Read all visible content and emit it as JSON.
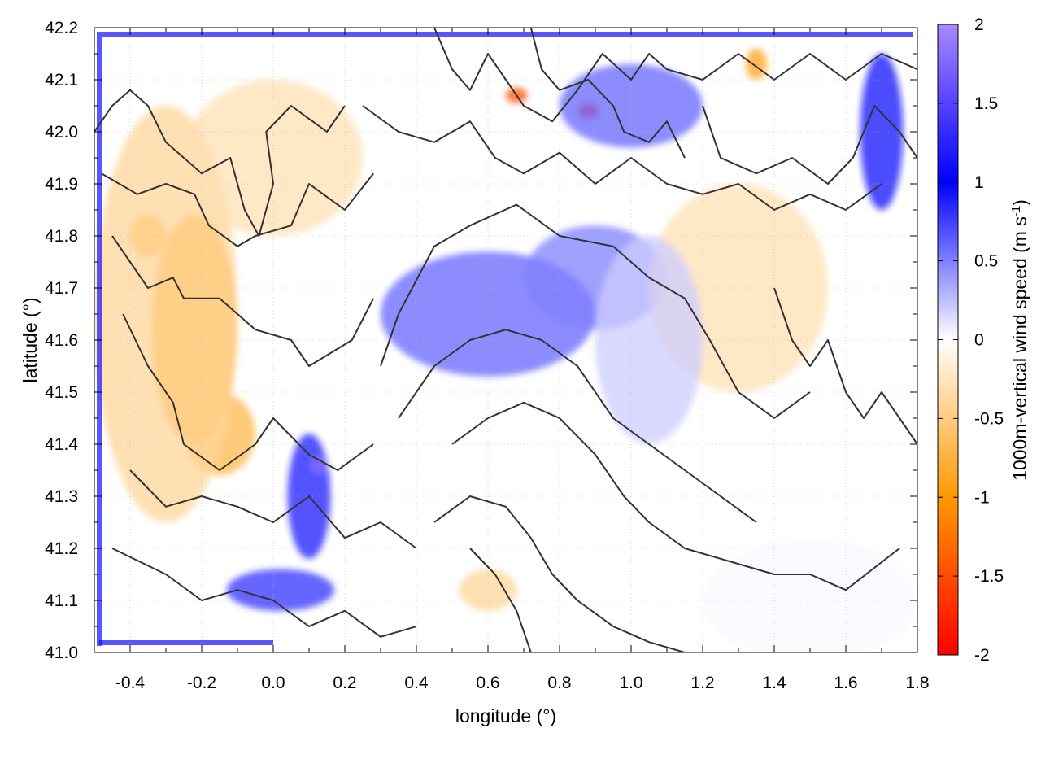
{
  "chart_data": {
    "type": "heatmap",
    "xlabel": "longitude (°)",
    "ylabel": "latitude (°)",
    "colorbar_label": "1000m-vertical wind speed (m s",
    "colorbar_unit_exponent": "-1",
    "colorbar_label_close": ")",
    "xlim": [
      -0.5,
      1.8
    ],
    "ylim": [
      41.0,
      42.2
    ],
    "clim": [
      -2,
      2
    ],
    "x_ticks": [
      -0.4,
      -0.2,
      0.0,
      0.2,
      0.4,
      0.6,
      0.8,
      1.0,
      1.2,
      1.4,
      1.6,
      1.8
    ],
    "x_tick_labels": [
      "-0.4",
      "-0.2",
      "0.0",
      "0.2",
      "0.4",
      "0.6",
      "0.8",
      "1.0",
      "1.2",
      "1.4",
      "1.6",
      "1.8"
    ],
    "y_ticks": [
      41.0,
      41.1,
      41.2,
      41.3,
      41.4,
      41.5,
      41.6,
      41.7,
      41.8,
      41.9,
      42.0,
      42.1,
      42.2
    ],
    "y_tick_labels": [
      "41.0",
      "41.1",
      "41.2",
      "41.3",
      "41.4",
      "41.5",
      "41.6",
      "41.7",
      "41.8",
      "41.9",
      "42.0",
      "42.1",
      "42.2"
    ],
    "colorbar_ticks": [
      2,
      1.5,
      1,
      0.5,
      0,
      -0.5,
      -1,
      -1.5,
      -2
    ],
    "colorbar_tick_labels": [
      "2",
      "1.5",
      "1",
      "0.5",
      "0",
      "-0.5",
      "-1",
      "-1.5",
      "-2"
    ],
    "grid": true,
    "colormap": [
      "#ff0000",
      "#ff9900",
      "#ffffff",
      "#0000ff",
      "#aa88ff"
    ],
    "features": [
      {
        "lon": -0.22,
        "lat": 41.62,
        "value": -0.9,
        "rx": 0.12,
        "ry": 0.22
      },
      {
        "lon": -0.15,
        "lat": 41.42,
        "value": -0.7,
        "rx": 0.1,
        "ry": 0.08
      },
      {
        "lon": -0.35,
        "lat": 41.8,
        "value": -0.8,
        "rx": 0.05,
        "ry": 0.04
      },
      {
        "lon": -0.3,
        "lat": 41.65,
        "value": -0.4,
        "rx": 0.2,
        "ry": 0.4
      },
      {
        "lon": 0.0,
        "lat": 41.95,
        "value": -0.3,
        "rx": 0.25,
        "ry": 0.15
      },
      {
        "lon": 0.6,
        "lat": 41.65,
        "value": 0.6,
        "rx": 0.3,
        "ry": 0.12
      },
      {
        "lon": 0.9,
        "lat": 41.72,
        "value": 0.5,
        "rx": 0.2,
        "ry": 0.1
      },
      {
        "lon": 0.1,
        "lat": 41.3,
        "value": 0.9,
        "rx": 0.06,
        "ry": 0.12
      },
      {
        "lon": 0.02,
        "lat": 41.12,
        "value": 0.8,
        "rx": 0.15,
        "ry": 0.04
      },
      {
        "lon": 0.13,
        "lat": 41.36,
        "value": 1.8,
        "rx": 0.02,
        "ry": 0.015
      },
      {
        "lon": 1.7,
        "lat": 42.0,
        "value": 1.1,
        "rx": 0.06,
        "ry": 0.15
      },
      {
        "lon": 0.68,
        "lat": 42.07,
        "value": -1.5,
        "rx": 0.03,
        "ry": 0.015
      },
      {
        "lon": 0.88,
        "lat": 42.04,
        "value": -1.6,
        "rx": 0.03,
        "ry": 0.015
      },
      {
        "lon": 1.35,
        "lat": 42.13,
        "value": -0.9,
        "rx": 0.03,
        "ry": 0.03
      },
      {
        "lon": 1.3,
        "lat": 41.7,
        "value": -0.3,
        "rx": 0.25,
        "ry": 0.2
      },
      {
        "lon": 1.05,
        "lat": 41.6,
        "value": 0.2,
        "rx": 0.15,
        "ry": 0.2
      },
      {
        "lon": 1.5,
        "lat": 41.1,
        "value": 0.02,
        "rx": 0.3,
        "ry": 0.12
      },
      {
        "lon": 0.6,
        "lat": 41.12,
        "value": -0.4,
        "rx": 0.08,
        "ry": 0.04
      },
      {
        "lon": 1.0,
        "lat": 42.05,
        "value": 0.6,
        "rx": 0.2,
        "ry": 0.08
      }
    ],
    "contours": [
      [
        [
          -0.5,
          42.0
        ],
        [
          -0.45,
          42.05
        ],
        [
          -0.4,
          42.08
        ],
        [
          -0.35,
          42.05
        ],
        [
          -0.3,
          41.98
        ],
        [
          -0.25,
          41.95
        ],
        [
          -0.2,
          41.92
        ],
        [
          -0.12,
          41.95
        ],
        [
          -0.08,
          41.85
        ],
        [
          -0.04,
          41.8
        ],
        [
          0.0,
          41.9
        ],
        [
          -0.02,
          42.0
        ],
        [
          0.05,
          42.05
        ],
        [
          0.15,
          42.0
        ],
        [
          0.2,
          42.05
        ]
      ],
      [
        [
          -0.48,
          41.92
        ],
        [
          -0.38,
          41.88
        ],
        [
          -0.3,
          41.9
        ],
        [
          -0.22,
          41.88
        ],
        [
          -0.18,
          41.82
        ],
        [
          -0.1,
          41.78
        ],
        [
          -0.05,
          41.8
        ],
        [
          0.05,
          41.82
        ],
        [
          0.1,
          41.9
        ],
        [
          0.2,
          41.85
        ],
        [
          0.28,
          41.92
        ]
      ],
      [
        [
          -0.45,
          41.8
        ],
        [
          -0.4,
          41.75
        ],
        [
          -0.35,
          41.7
        ],
        [
          -0.28,
          41.72
        ],
        [
          -0.25,
          41.68
        ],
        [
          -0.15,
          41.68
        ],
        [
          -0.05,
          41.62
        ],
        [
          0.05,
          41.6
        ],
        [
          0.1,
          41.55
        ],
        [
          0.22,
          41.6
        ],
        [
          0.28,
          41.68
        ]
      ],
      [
        [
          -0.42,
          41.65
        ],
        [
          -0.35,
          41.55
        ],
        [
          -0.28,
          41.48
        ],
        [
          -0.25,
          41.4
        ],
        [
          -0.15,
          41.35
        ],
        [
          -0.05,
          41.4
        ],
        [
          0.0,
          41.45
        ],
        [
          0.1,
          41.38
        ],
        [
          0.18,
          41.35
        ],
        [
          0.28,
          41.4
        ]
      ],
      [
        [
          -0.4,
          41.35
        ],
        [
          -0.3,
          41.28
        ],
        [
          -0.2,
          41.3
        ],
        [
          -0.1,
          41.28
        ],
        [
          0.0,
          41.25
        ],
        [
          0.1,
          41.3
        ],
        [
          0.2,
          41.22
        ],
        [
          0.3,
          41.25
        ],
        [
          0.4,
          41.2
        ]
      ],
      [
        [
          -0.45,
          41.2
        ],
        [
          -0.3,
          41.15
        ],
        [
          -0.2,
          41.1
        ],
        [
          -0.1,
          41.12
        ],
        [
          0.0,
          41.1
        ],
        [
          0.1,
          41.05
        ],
        [
          0.2,
          41.08
        ],
        [
          0.3,
          41.03
        ],
        [
          0.4,
          41.05
        ]
      ],
      [
        [
          0.3,
          41.55
        ],
        [
          0.35,
          41.65
        ],
        [
          0.45,
          41.78
        ],
        [
          0.55,
          41.82
        ],
        [
          0.68,
          41.86
        ],
        [
          0.8,
          41.8
        ],
        [
          0.95,
          41.78
        ],
        [
          1.05,
          41.72
        ],
        [
          1.15,
          41.68
        ],
        [
          1.22,
          41.6
        ],
        [
          1.3,
          41.5
        ],
        [
          1.4,
          41.45
        ],
        [
          1.5,
          41.5
        ]
      ],
      [
        [
          0.35,
          41.45
        ],
        [
          0.45,
          41.55
        ],
        [
          0.55,
          41.6
        ],
        [
          0.65,
          41.62
        ],
        [
          0.75,
          41.6
        ],
        [
          0.85,
          41.55
        ],
        [
          0.95,
          41.45
        ],
        [
          1.05,
          41.4
        ],
        [
          1.15,
          41.35
        ],
        [
          1.25,
          41.3
        ],
        [
          1.35,
          41.25
        ]
      ],
      [
        [
          0.5,
          41.4
        ],
        [
          0.6,
          41.45
        ],
        [
          0.7,
          41.48
        ],
        [
          0.8,
          41.45
        ],
        [
          0.9,
          41.38
        ],
        [
          0.98,
          41.3
        ],
        [
          1.05,
          41.25
        ],
        [
          1.15,
          41.2
        ],
        [
          1.25,
          41.18
        ],
        [
          1.4,
          41.15
        ],
        [
          1.5,
          41.15
        ],
        [
          1.6,
          41.12
        ],
        [
          1.75,
          41.2
        ]
      ],
      [
        [
          0.45,
          41.25
        ],
        [
          0.55,
          41.3
        ],
        [
          0.65,
          41.28
        ],
        [
          0.72,
          41.22
        ],
        [
          0.78,
          41.15
        ],
        [
          0.85,
          41.1
        ],
        [
          0.95,
          41.05
        ],
        [
          1.05,
          41.02
        ],
        [
          1.15,
          41.0
        ]
      ],
      [
        [
          0.55,
          41.2
        ],
        [
          0.62,
          41.15
        ],
        [
          0.68,
          41.08
        ],
        [
          0.72,
          41.0
        ]
      ],
      [
        [
          0.25,
          42.05
        ],
        [
          0.35,
          42.0
        ],
        [
          0.45,
          41.98
        ],
        [
          0.55,
          42.02
        ],
        [
          0.62,
          41.95
        ],
        [
          0.7,
          41.92
        ],
        [
          0.8,
          41.96
        ],
        [
          0.9,
          41.9
        ],
        [
          1.0,
          41.95
        ],
        [
          1.1,
          41.9
        ],
        [
          1.2,
          41.88
        ],
        [
          1.3,
          41.9
        ],
        [
          1.4,
          41.85
        ],
        [
          1.5,
          41.88
        ],
        [
          1.6,
          41.85
        ],
        [
          1.7,
          41.9
        ]
      ],
      [
        [
          0.45,
          42.2
        ],
        [
          0.5,
          42.12
        ],
        [
          0.55,
          42.08
        ],
        [
          0.6,
          42.15
        ],
        [
          0.65,
          42.1
        ],
        [
          0.7,
          42.05
        ],
        [
          0.78,
          42.02
        ],
        [
          0.85,
          42.08
        ],
        [
          0.92,
          42.15
        ],
        [
          1.0,
          42.1
        ],
        [
          1.05,
          42.15
        ],
        [
          1.1,
          42.12
        ],
        [
          1.2,
          42.1
        ],
        [
          1.3,
          42.15
        ],
        [
          1.4,
          42.1
        ],
        [
          1.5,
          42.15
        ],
        [
          1.6,
          42.1
        ],
        [
          1.7,
          42.15
        ],
        [
          1.8,
          42.12
        ]
      ],
      [
        [
          0.72,
          42.2
        ],
        [
          0.75,
          42.12
        ],
        [
          0.8,
          42.08
        ],
        [
          0.88,
          42.1
        ],
        [
          0.95,
          42.05
        ],
        [
          0.98,
          42.0
        ],
        [
          1.05,
          41.98
        ],
        [
          1.1,
          42.02
        ],
        [
          1.15,
          41.95
        ]
      ],
      [
        [
          1.2,
          42.05
        ],
        [
          1.25,
          41.95
        ],
        [
          1.35,
          41.92
        ],
        [
          1.45,
          41.95
        ],
        [
          1.55,
          41.9
        ],
        [
          1.62,
          41.95
        ],
        [
          1.68,
          42.05
        ],
        [
          1.75,
          42.0
        ],
        [
          1.8,
          41.95
        ]
      ],
      [
        [
          1.4,
          41.7
        ],
        [
          1.45,
          41.6
        ],
        [
          1.5,
          41.55
        ],
        [
          1.55,
          41.6
        ],
        [
          1.6,
          41.5
        ],
        [
          1.65,
          41.45
        ],
        [
          1.7,
          41.5
        ],
        [
          1.75,
          41.45
        ],
        [
          1.8,
          41.4
        ]
      ]
    ]
  }
}
